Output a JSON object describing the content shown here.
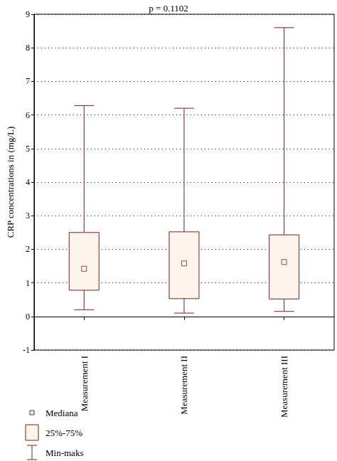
{
  "chart_data": {
    "type": "boxplot",
    "title": "p = 0.1102",
    "y_label": "CRP concentrations in (mg/L)",
    "categories": [
      "Measurement I",
      "Measurement II",
      "Measurement III"
    ],
    "stats": {
      "min": [
        0.2,
        0.1,
        0.15
      ],
      "q1": [
        0.78,
        0.53,
        0.52
      ],
      "median": [
        1.42,
        1.58,
        1.62
      ],
      "q3": [
        2.5,
        2.52,
        2.43
      ],
      "max": [
        6.28,
        6.2,
        8.6
      ]
    },
    "legend_labels": {
      "median": "Mediana",
      "box": "25%-75%",
      "whisker": "Min-maks"
    },
    "color": "#7a1f1f",
    "ylim": [
      -1,
      9
    ],
    "yticks": [
      -1,
      0,
      1,
      2,
      3,
      4,
      5,
      6,
      7,
      8,
      9
    ],
    "grid": true
  }
}
